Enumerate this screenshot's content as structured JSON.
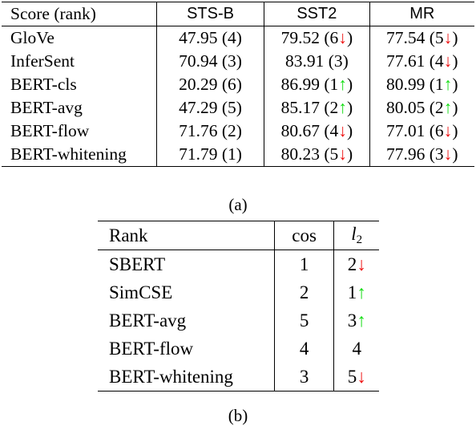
{
  "table_a": {
    "headers": [
      "Score (rank)",
      "STS-B",
      "SST2",
      "MR"
    ],
    "rows": [
      {
        "model": "GloVe",
        "cells": [
          {
            "text": "47.95 (4)"
          },
          {
            "text": "79.52 (6",
            "arrow": "down",
            "close": ")"
          },
          {
            "text": "77.54 (5",
            "arrow": "down",
            "close": ")"
          }
        ]
      },
      {
        "model": "InferSent",
        "cells": [
          {
            "text": "70.94 (3)"
          },
          {
            "text": "83.91 (3)"
          },
          {
            "text": "77.61 (4",
            "arrow": "down",
            "close": ")"
          }
        ]
      },
      {
        "model": "BERT-cls",
        "cells": [
          {
            "text": "20.29 (6)"
          },
          {
            "text": "86.99 (1",
            "arrow": "up",
            "close": ")"
          },
          {
            "text": "80.99 (1",
            "arrow": "up",
            "close": ")"
          }
        ]
      },
      {
        "model": "BERT-avg",
        "cells": [
          {
            "text": "47.29 (5)"
          },
          {
            "text": "85.17 (2",
            "arrow": "up",
            "close": ")"
          },
          {
            "text": "80.05 (2",
            "arrow": "up",
            "close": ")"
          }
        ]
      },
      {
        "model": "BERT-flow",
        "cells": [
          {
            "text": "71.76 (2)"
          },
          {
            "text": "80.67 (4",
            "arrow": "down",
            "close": ")"
          },
          {
            "text": "77.01 (6",
            "arrow": "down",
            "close": ")"
          }
        ]
      },
      {
        "model": "BERT-whitening",
        "cells": [
          {
            "text": "71.79 (1)"
          },
          {
            "text": "80.23 (5",
            "arrow": "down",
            "close": ")"
          },
          {
            "text": "77.96 (3",
            "arrow": "down",
            "close": ")"
          }
        ]
      }
    ],
    "caption": "(a)"
  },
  "table_b": {
    "headers": {
      "rank": "Rank",
      "cos": "cos",
      "l2_base": "l",
      "l2_sub": "2"
    },
    "rows": [
      {
        "model": "SBERT",
        "cos": "1",
        "l2": "2",
        "arrow": "down"
      },
      {
        "model": "SimCSE",
        "cos": "2",
        "l2": "1",
        "arrow": "up"
      },
      {
        "model": "BERT-avg",
        "cos": "5",
        "l2": "3",
        "arrow": "up"
      },
      {
        "model": "BERT-flow",
        "cos": "4",
        "l2": "4",
        "arrow": null
      },
      {
        "model": "BERT-whitening",
        "cos": "3",
        "l2": "5",
        "arrow": "down"
      }
    ],
    "caption": "(b)"
  },
  "arrow_glyphs": {
    "up": "↑",
    "down": "↓"
  },
  "colors": {
    "up": "#11dd11",
    "down": "#ee1111"
  }
}
